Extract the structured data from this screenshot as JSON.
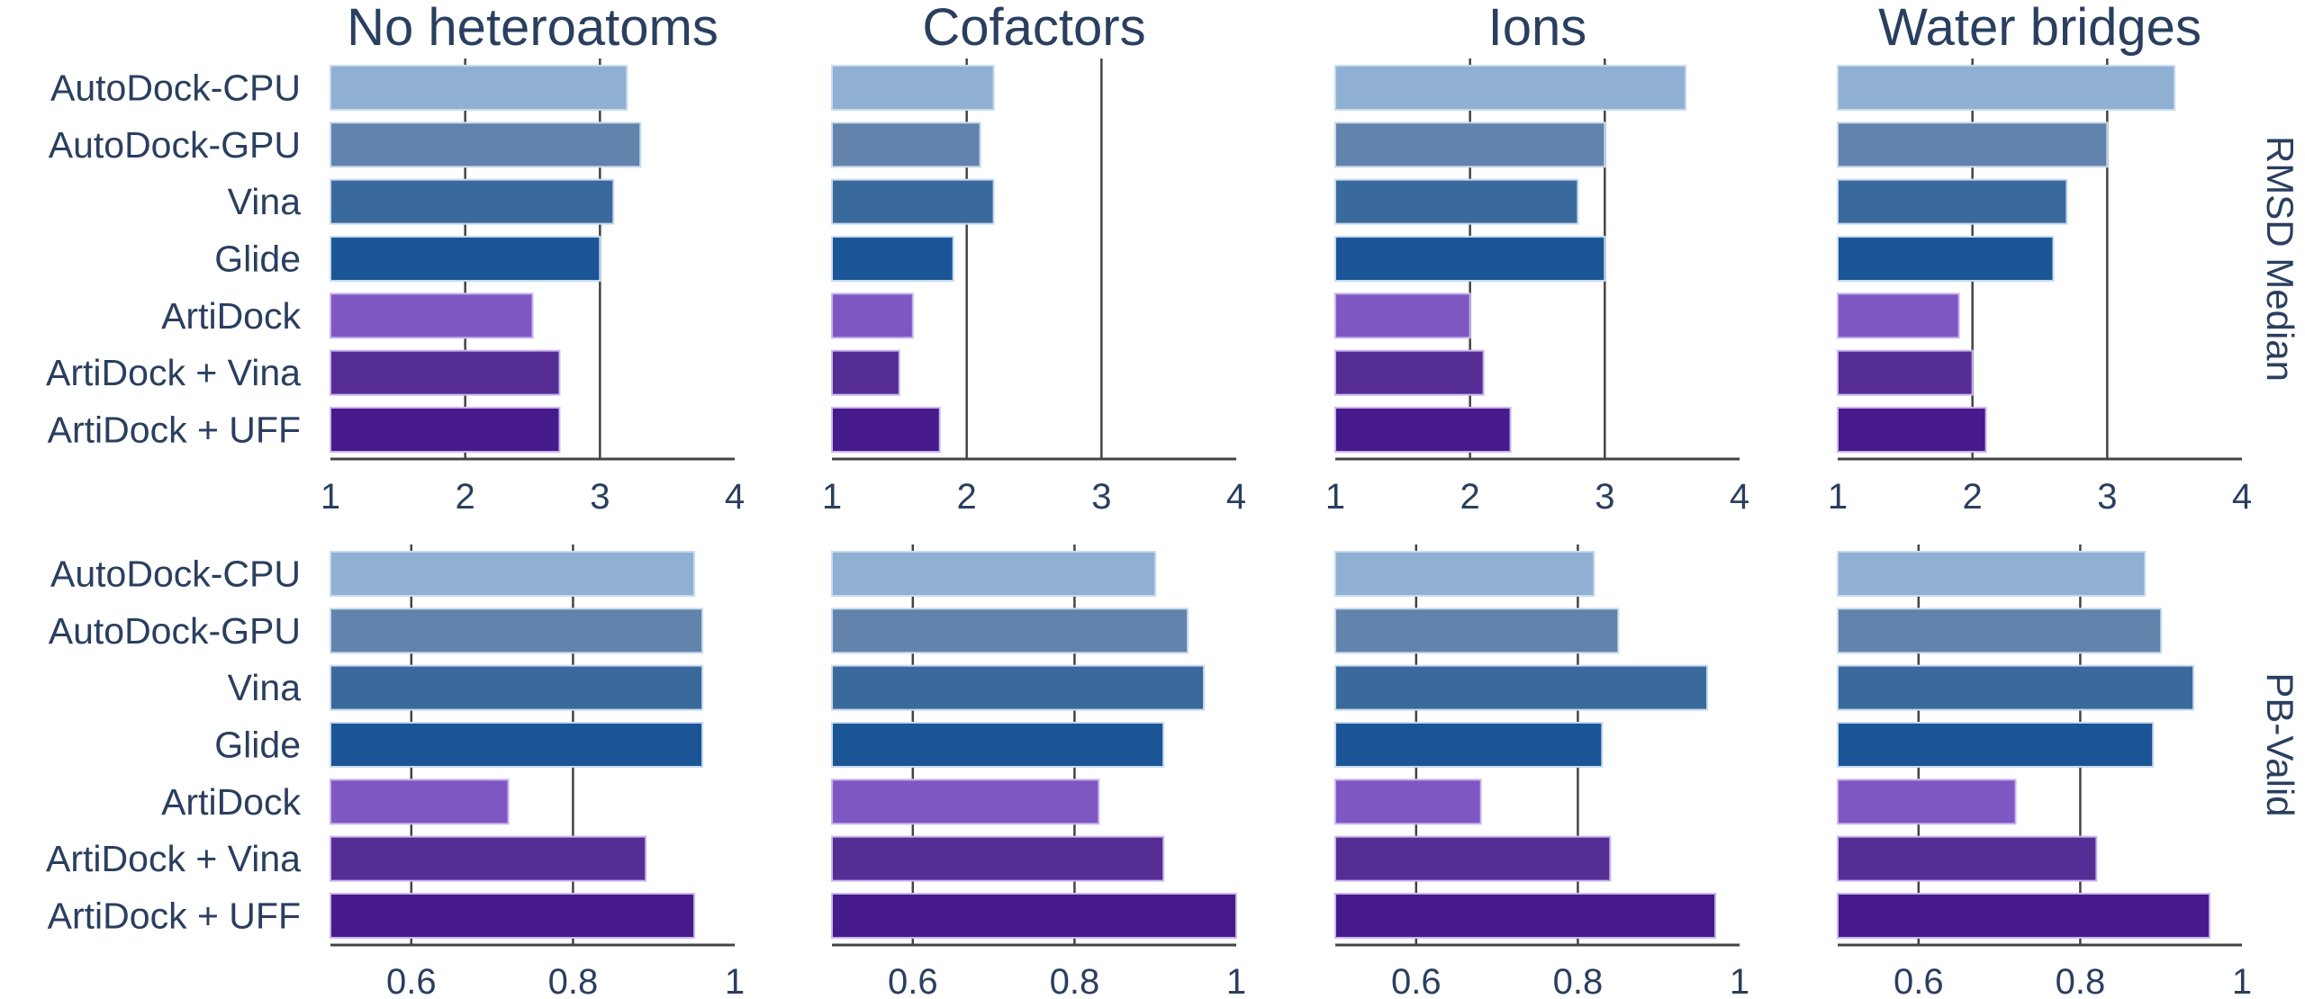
{
  "figure": {
    "column_titles": [
      "No heteroatoms",
      "Cofactors",
      "Ions",
      "Water bridges"
    ],
    "row_titles": [
      "RMSD Median",
      "PB-Valid"
    ],
    "text_color": "#2a3f5f",
    "grid_color": "#444444"
  },
  "chart_data": {
    "type": "bar",
    "orientation": "horizontal",
    "layout": "faceted grid, 2 rows x 4 columns",
    "categories": [
      "AutoDock-CPU",
      "AutoDock-GPU",
      "Vina",
      "Glide",
      "ArtiDock",
      "ArtiDock + Vina",
      "ArtiDock + UFF"
    ],
    "colors": [
      "#8fb0d3",
      "#6283ab",
      "#3a6a9c",
      "#1b5596",
      "#7f57c2",
      "#552d95",
      "#461a8a"
    ],
    "rows": [
      {
        "metric": "RMSD Median",
        "xlim": [
          1,
          4
        ],
        "ticks": [
          1,
          2,
          3,
          4
        ],
        "tick_labels": [
          "1",
          "2",
          "3",
          "4"
        ],
        "gridlines": [
          2,
          3
        ],
        "panels": [
          {
            "title": "No heteroatoms",
            "values": [
              3.2,
              3.3,
              3.1,
              3.0,
              2.5,
              2.7,
              2.7
            ]
          },
          {
            "title": "Cofactors",
            "values": [
              2.2,
              2.1,
              2.2,
              1.9,
              1.6,
              1.5,
              1.8
            ]
          },
          {
            "title": "Ions",
            "values": [
              3.6,
              3.0,
              2.8,
              3.0,
              2.0,
              2.1,
              2.3
            ]
          },
          {
            "title": "Water bridges",
            "values": [
              3.5,
              3.0,
              2.7,
              2.6,
              1.9,
              2.0,
              2.1
            ]
          }
        ]
      },
      {
        "metric": "PB-Valid",
        "xlim": [
          0.5,
          1.0
        ],
        "ticks": [
          0.6,
          0.8,
          1.0
        ],
        "tick_labels": [
          "0.6",
          "0.8",
          "1"
        ],
        "gridlines": [
          0.6,
          0.8
        ],
        "panels": [
          {
            "title": "No heteroatoms",
            "values": [
              0.95,
              0.96,
              0.96,
              0.96,
              0.72,
              0.89,
              0.95
            ]
          },
          {
            "title": "Cofactors",
            "values": [
              0.9,
              0.94,
              0.96,
              0.91,
              0.83,
              0.91,
              1.0
            ]
          },
          {
            "title": "Ions",
            "values": [
              0.82,
              0.85,
              0.96,
              0.83,
              0.68,
              0.84,
              0.97
            ]
          },
          {
            "title": "Water bridges",
            "values": [
              0.88,
              0.9,
              0.94,
              0.89,
              0.72,
              0.82,
              0.96
            ]
          }
        ]
      }
    ],
    "xlabel": "",
    "ylabel": "",
    "grid": true,
    "legend": "none"
  }
}
